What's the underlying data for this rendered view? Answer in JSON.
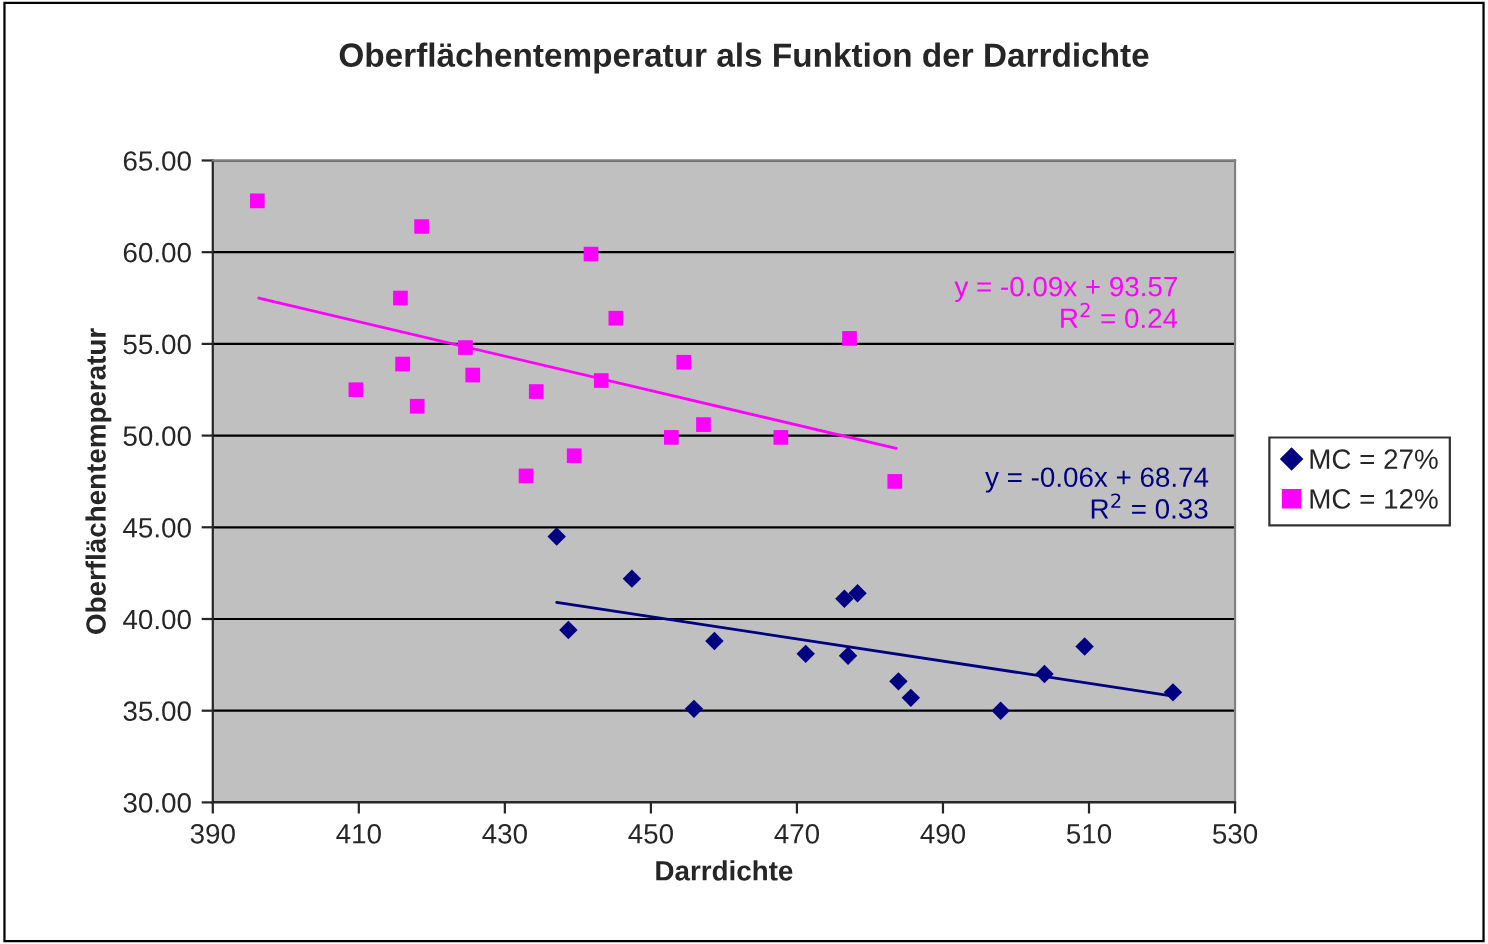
{
  "chart_data": {
    "type": "scatter",
    "title": "Oberflächentemperatur als Funktion der Darrdichte",
    "xlabel": "Darrdichte",
    "ylabel": "Oberflächentemperatur",
    "xlim": [
      390,
      530
    ],
    "xticks": [
      390,
      410,
      430,
      450,
      470,
      490,
      510,
      530
    ],
    "ylim": [
      30,
      65
    ],
    "yticks": [
      {
        "value": 30,
        "label": "30.00"
      },
      {
        "value": 35,
        "label": "35.00"
      },
      {
        "value": 40,
        "label": "40.00"
      },
      {
        "value": 45,
        "label": "45.00"
      },
      {
        "value": 50,
        "label": "50.00"
      },
      {
        "value": 55,
        "label": "55.00"
      },
      {
        "value": 60,
        "label": "60.00"
      },
      {
        "value": 65,
        "label": "65.00"
      }
    ],
    "grid": "y",
    "legend": "right",
    "series": [
      {
        "name": "MC = 27%",
        "marker": "diamond",
        "color": "#000080",
        "x": [
          437.1,
          447.4,
          438.7,
          458.7,
          455.9,
          476.5,
          478.3,
          471.2,
          477.0,
          483.9,
          485.6,
          497.9,
          503.9,
          509.4,
          521.5
        ],
        "values": [
          44.5,
          42.2,
          39.4,
          38.8,
          35.1,
          41.1,
          41.4,
          38.1,
          38.0,
          36.6,
          35.7,
          35.0,
          37.0,
          38.5,
          36.0
        ]
      },
      {
        "name": "MC = 12%",
        "marker": "square",
        "color": "#ff00ff",
        "x": [
          396.1,
          418.6,
          441.8,
          415.7,
          445.2,
          424.6,
          416.0,
          425.6,
          454.5,
          443.2,
          409.6,
          434.3,
          418.0,
          457.2,
          452.8,
          467.8,
          439.5,
          432.9,
          477.2,
          483.4
        ],
        "values": [
          62.8,
          61.4,
          59.9,
          57.5,
          56.4,
          54.8,
          53.9,
          53.3,
          54.0,
          53.0,
          52.5,
          52.4,
          51.6,
          50.6,
          49.9,
          49.9,
          48.9,
          47.8,
          55.3,
          47.5
        ]
      },
      {
        "type": "line",
        "marker": "none",
        "color": "#000080",
        "x": [
          437.1,
          521.5
        ],
        "values": [
          40.9,
          35.8
        ]
      },
      {
        "type": "line",
        "marker": "none",
        "color": "#ff00ff",
        "x": [
          396.3,
          483.6
        ],
        "values": [
          57.5,
          49.3
        ]
      }
    ],
    "annotations": [
      "y = -0.09x + 93.57\nR$^{2}$ = 0.24",
      "y = -0.06x + 68.74\nR$^{2}$ = 0.33"
    ]
  }
}
